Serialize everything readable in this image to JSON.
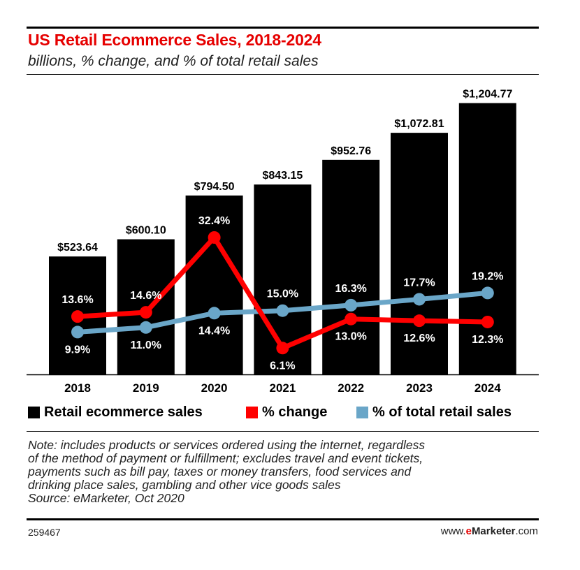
{
  "header": {
    "title": "US Retail Ecommerce Sales, 2018-2024",
    "subtitle": "billions, % change, and % of total retail sales"
  },
  "legend": {
    "sales": "Retail ecommerce sales",
    "change": "% change",
    "share": "% of total retail sales"
  },
  "note": {
    "lines": [
      "Note: includes products or services ordered using the internet, regardless",
      "of the method of payment or fulfillment; excludes travel and event tickets,",
      "payments such as bill pay, taxes or money transfers, food services and",
      "drinking place sales, gambling and other vice goods sales",
      "Source: eMarketer, Oct 2020"
    ]
  },
  "footer": {
    "id": "259467",
    "brand_prefix": "www.",
    "brand_accent": "e",
    "brand_name": "Marketer",
    "brand_suffix": ".com"
  },
  "colors": {
    "title": "#e60000",
    "bar": "#000000",
    "change": "#ff0000",
    "share": "#6aa6c8"
  },
  "chart_data": {
    "type": "bar",
    "categories": [
      "2018",
      "2019",
      "2020",
      "2021",
      "2022",
      "2023",
      "2024"
    ],
    "series": [
      {
        "name": "Retail ecommerce sales",
        "type": "bar",
        "values": [
          523.64,
          600.1,
          794.5,
          843.15,
          952.76,
          1072.81,
          1204.77
        ],
        "labels": [
          "$523.64",
          "$600.10",
          "$794.50",
          "$843.15",
          "$952.76",
          "$1,072.81",
          "$1,204.77"
        ]
      },
      {
        "name": "% change",
        "type": "line",
        "values": [
          13.6,
          14.6,
          32.4,
          6.1,
          13.0,
          12.6,
          12.3
        ],
        "labels": [
          "13.6%",
          "14.6%",
          "32.4%",
          "6.1%",
          "13.0%",
          "12.6%",
          "12.3%"
        ],
        "label_position": [
          "above",
          "above",
          "above",
          "below",
          "below",
          "below",
          "below"
        ]
      },
      {
        "name": "% of total retail sales",
        "type": "line",
        "values": [
          9.9,
          11.0,
          14.4,
          15.0,
          16.3,
          17.7,
          19.2
        ],
        "labels": [
          "9.9%",
          "11.0%",
          "14.4%",
          "15.0%",
          "16.3%",
          "17.7%",
          "19.2%"
        ],
        "label_position": [
          "below",
          "below",
          "below",
          "above",
          "above",
          "above",
          "above"
        ]
      }
    ],
    "grid": false,
    "legend_position": "bottom"
  }
}
